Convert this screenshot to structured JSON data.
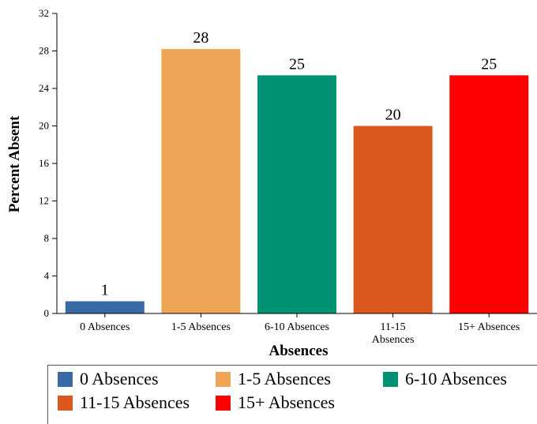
{
  "chart_data": {
    "type": "bar",
    "categories": [
      "0 Absences",
      "1-5 Absences",
      "6-10 Absences",
      "11-15 Absences",
      "15+ Absences"
    ],
    "category_tick_labels": [
      "0 Absences",
      "1-5 Absences",
      "6-10 Absences",
      "11-15\nAbsences",
      "15+ Absences"
    ],
    "values": [
      1.3,
      28.2,
      25.4,
      20.0,
      25.4
    ],
    "data_labels": [
      "1",
      "28",
      "25",
      "20",
      "25"
    ],
    "colors": [
      "#3a6aa5",
      "#eea556",
      "#009272",
      "#dc571e",
      "#fe0000"
    ],
    "xlabel": "Absences",
    "ylabel": "Percent Absent",
    "ylim": [
      0,
      32
    ],
    "yticks": [
      "0",
      "4",
      "8",
      "12",
      "16",
      "20",
      "24",
      "28",
      "32"
    ],
    "grid": false,
    "legend": {
      "position": "bottom",
      "entries": [
        "0 Absences",
        "1-5 Absences",
        "6-10 Absences",
        "11-15 Absences",
        "15+ Absences"
      ]
    }
  }
}
